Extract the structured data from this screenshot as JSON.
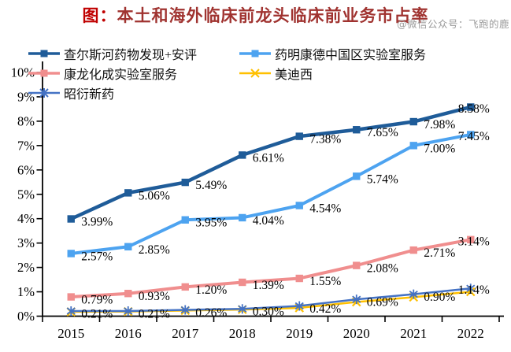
{
  "title": {
    "prefix": "图：",
    "text": "本土和海外临床前龙头临床前业务市占率"
  },
  "watermark": "@微信公众号：飞跑的鹿",
  "chart_data": {
    "type": "line",
    "title": "本土和海外临床前龙头临床前业务市占率",
    "x": [
      "2015",
      "2016",
      "2017",
      "2018",
      "2019",
      "2020",
      "2021",
      "2022"
    ],
    "ylim": [
      0,
      10
    ],
    "yticks": [
      "0%",
      "1%",
      "2%",
      "3%",
      "4%",
      "5%",
      "6%",
      "7%",
      "8%",
      "9%",
      "10%"
    ],
    "grid": false,
    "legend_position": "top-left, two columns, overlapping plot",
    "label_format": "percent, 2 decimals",
    "series": [
      {
        "name": "康龙化成实验室服务",
        "color": "#F08E8E",
        "marker": "square",
        "line_width": 4,
        "show_labels": true,
        "values": [
          0.79,
          0.93,
          1.2,
          1.39,
          1.55,
          2.08,
          2.71,
          3.14
        ]
      },
      {
        "name": "美迪西",
        "color": "#FFC000",
        "marker": "x",
        "line_width": 2.5,
        "show_labels": false,
        "values_estimated": true,
        "values": [
          0.18,
          0.19,
          0.23,
          0.27,
          0.34,
          0.58,
          0.78,
          1.0
        ]
      },
      {
        "name": "昭衍新药",
        "color": "#4472C4",
        "marker": "asterisk",
        "line_width": 2.5,
        "show_labels": true,
        "values": [
          0.21,
          0.21,
          0.26,
          0.3,
          0.42,
          0.69,
          0.9,
          1.14
        ]
      },
      {
        "name": "药明康德中国区实验室服务",
        "color": "#4DA3F0",
        "marker": "square",
        "line_width": 4,
        "show_labels": true,
        "values": [
          2.57,
          2.85,
          3.95,
          4.04,
          4.54,
          5.74,
          7.0,
          7.45
        ]
      },
      {
        "name": "查尔斯河药物发现+安评",
        "color": "#1F5C99",
        "marker": "square",
        "line_width": 4.5,
        "show_labels": true,
        "values": [
          3.99,
          5.06,
          5.49,
          6.61,
          7.38,
          7.65,
          7.98,
          8.58
        ]
      }
    ],
    "legend_display_order": [
      "查尔斯河药物发现+安评",
      "药明康德中国区实验室服务",
      "康龙化成实验室服务",
      "美迪西",
      "昭衍新药"
    ]
  }
}
